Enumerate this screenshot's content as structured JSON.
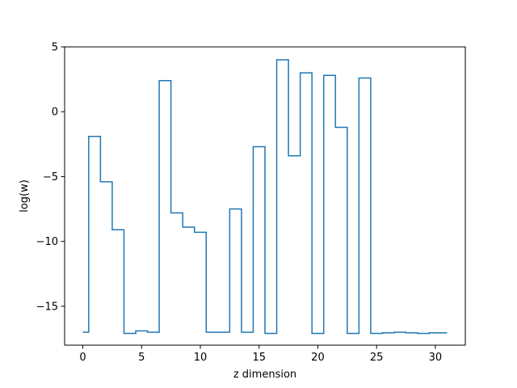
{
  "chart_data": {
    "type": "line",
    "drawstyle": "steps-mid",
    "xlabel": "z dimension",
    "ylabel": "log(w)",
    "xlim": [
      -1.55,
      32.55
    ],
    "ylim": [
      -18.0,
      5.0
    ],
    "grid": false,
    "x": [
      0,
      1,
      2,
      3,
      4,
      5,
      6,
      7,
      8,
      9,
      10,
      11,
      12,
      13,
      14,
      15,
      16,
      17,
      18,
      19,
      20,
      21,
      22,
      23,
      24,
      25,
      26,
      27,
      28,
      29,
      30,
      31
    ],
    "series": [
      {
        "color": "#1f77b4",
        "values": [
          -17.0,
          -1.9,
          -5.4,
          -9.1,
          -17.1,
          -16.9,
          -17.0,
          2.4,
          -7.8,
          -8.9,
          -9.3,
          -17.0,
          -17.0,
          -7.5,
          -17.0,
          -2.7,
          -17.1,
          4.0,
          -3.4,
          3.0,
          -17.1,
          2.8,
          -1.2,
          -17.1,
          2.6,
          -17.1,
          -17.05,
          -17.0,
          -17.05,
          -17.1,
          -17.05,
          -17.05
        ]
      }
    ],
    "x_ticks": [
      {
        "value": 0,
        "label": "0"
      },
      {
        "value": 5,
        "label": "5"
      },
      {
        "value": 10,
        "label": "10"
      },
      {
        "value": 15,
        "label": "15"
      },
      {
        "value": 20,
        "label": "20"
      },
      {
        "value": 25,
        "label": "25"
      },
      {
        "value": 30,
        "label": "30"
      }
    ],
    "y_ticks": [
      {
        "value": 5,
        "label": "5"
      },
      {
        "value": 0,
        "label": "0"
      },
      {
        "value": -5,
        "label": "−5"
      },
      {
        "value": -10,
        "label": "−10"
      },
      {
        "value": -15,
        "label": "−15"
      }
    ]
  }
}
